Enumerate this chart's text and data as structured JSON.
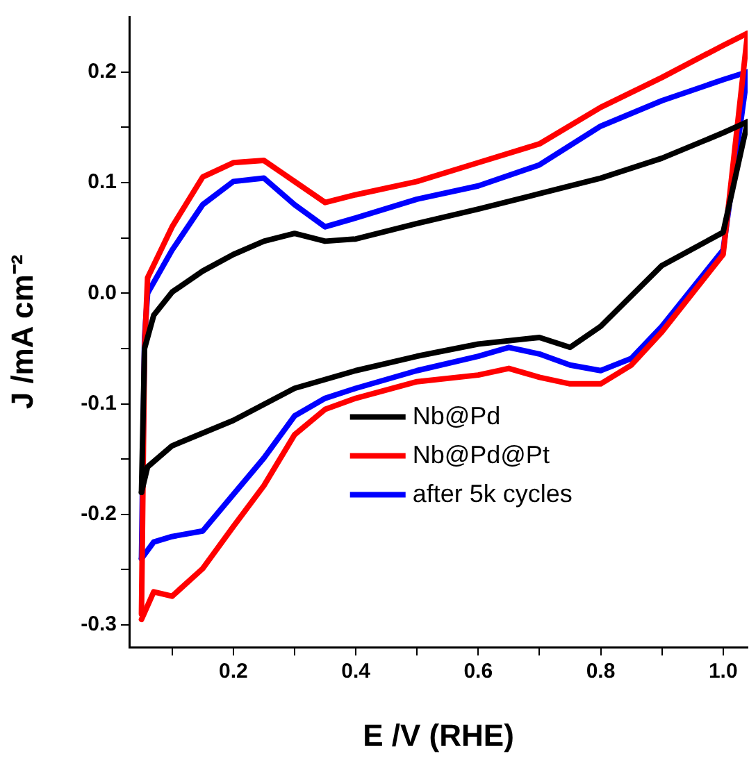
{
  "chart_data": {
    "type": "line",
    "xlabel": "E /V (RHE)",
    "ylabel": "J /mA cm⁻²",
    "xlim": [
      0.03,
      1.04
    ],
    "ylim": [
      -0.32,
      0.25
    ],
    "xticks": [
      {
        "value": 0.1,
        "label": null
      },
      0.2,
      {
        "value": 0.3,
        "label": null
      },
      0.4,
      {
        "value": 0.5,
        "label": null
      },
      0.6,
      {
        "value": 0.7,
        "label": null
      },
      0.8,
      {
        "value": 0.9,
        "label": null
      },
      {
        "value": 1.0,
        "label": "1.0"
      }
    ],
    "yticks": [
      -0.3,
      {
        "value": -0.25,
        "label": null
      },
      -0.2,
      {
        "value": -0.15,
        "label": null
      },
      -0.1,
      {
        "value": -0.05,
        "label": null
      },
      {
        "value": 0,
        "label": "0.0"
      },
      {
        "value": 0.05,
        "label": null
      },
      0.1,
      {
        "value": 0.15,
        "label": null
      },
      0.2
    ],
    "grid": false,
    "legend": "center",
    "marker": "none",
    "line_style": "solid",
    "series": [
      {
        "name": "Nb@Pd",
        "color": "#000000",
        "x": [
          0.05,
          0.055,
          0.07,
          0.1,
          0.15,
          0.2,
          0.25,
          0.3,
          0.35,
          0.4,
          0.5,
          0.6,
          0.7,
          0.8,
          0.9,
          1.0,
          1.04
        ],
        "values": [
          -0.18,
          -0.05,
          -0.02,
          0.001,
          0.02,
          0.035,
          0.047,
          0.054,
          0.047,
          0.049,
          0.063,
          0.076,
          0.09,
          0.104,
          0.122,
          0.145,
          0.155
        ]
      },
      {
        "color": "#000000",
        "x": [
          0.05,
          0.06,
          0.1,
          0.2,
          0.3,
          0.4,
          0.5,
          0.6,
          0.7,
          0.75,
          0.8,
          0.9,
          1.0,
          1.04
        ],
        "values": [
          -0.18,
          -0.157,
          -0.138,
          -0.115,
          -0.086,
          -0.07,
          -0.057,
          -0.046,
          -0.04,
          -0.049,
          -0.03,
          0.025,
          0.055,
          0.155
        ]
      },
      {
        "name": "Nb@Pd@Pt",
        "color": "#ff0000",
        "x": [
          0.05,
          0.055,
          0.06,
          0.1,
          0.15,
          0.2,
          0.25,
          0.3,
          0.35,
          0.4,
          0.5,
          0.6,
          0.7,
          0.8,
          0.9,
          1.0,
          1.04
        ],
        "values": [
          -0.29,
          -0.05,
          0.014,
          0.06,
          0.105,
          0.118,
          0.12,
          0.101,
          0.082,
          0.089,
          0.101,
          0.118,
          0.135,
          0.168,
          0.195,
          0.224,
          0.235
        ]
      },
      {
        "color": "#ff0000",
        "x": [
          0.05,
          0.07,
          0.1,
          0.15,
          0.2,
          0.25,
          0.3,
          0.35,
          0.4,
          0.5,
          0.6,
          0.65,
          0.7,
          0.75,
          0.8,
          0.85,
          0.9,
          1.0,
          1.04
        ],
        "values": [
          -0.295,
          -0.27,
          -0.274,
          -0.249,
          -0.211,
          -0.174,
          -0.128,
          -0.105,
          -0.095,
          -0.08,
          -0.074,
          -0.068,
          -0.076,
          -0.082,
          -0.082,
          -0.065,
          -0.035,
          0.035,
          0.235
        ]
      },
      {
        "name": "after 5k cycles",
        "color": "#0000ff",
        "x": [
          0.05,
          0.055,
          0.06,
          0.1,
          0.15,
          0.2,
          0.25,
          0.3,
          0.35,
          0.4,
          0.5,
          0.6,
          0.7,
          0.8,
          0.9,
          1.0,
          1.04
        ],
        "values": [
          -0.24,
          -0.04,
          0.0,
          0.039,
          0.08,
          0.101,
          0.104,
          0.08,
          0.06,
          0.068,
          0.085,
          0.097,
          0.116,
          0.151,
          0.174,
          0.193,
          0.2
        ]
      },
      {
        "color": "#0000ff",
        "x": [
          0.05,
          0.07,
          0.1,
          0.15,
          0.2,
          0.25,
          0.3,
          0.35,
          0.4,
          0.5,
          0.6,
          0.65,
          0.7,
          0.75,
          0.8,
          0.85,
          0.9,
          1.0,
          1.04
        ],
        "values": [
          -0.24,
          -0.225,
          -0.22,
          -0.215,
          -0.182,
          -0.149,
          -0.111,
          -0.095,
          -0.086,
          -0.07,
          -0.057,
          -0.049,
          -0.055,
          -0.065,
          -0.07,
          -0.059,
          -0.03,
          0.039,
          0.2
        ]
      }
    ]
  }
}
